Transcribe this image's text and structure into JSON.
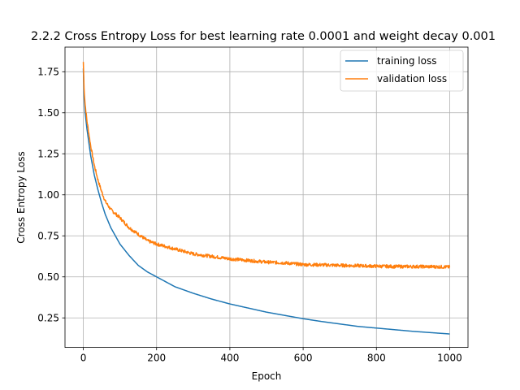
{
  "chart_data": {
    "type": "line",
    "title": "2.2.2 Cross Entropy Loss for best learning rate 0.0001 and weight decay 0.001",
    "xlabel": "Epoch",
    "ylabel": "Cross Entropy Loss",
    "xlim": [
      -50,
      1050
    ],
    "ylim": [
      0.07,
      1.9
    ],
    "xticks": [
      0,
      200,
      400,
      600,
      800,
      1000
    ],
    "xtick_labels": [
      "0",
      "200",
      "400",
      "600",
      "800",
      "1000"
    ],
    "yticks": [
      0.25,
      0.5,
      0.75,
      1.0,
      1.25,
      1.5,
      1.75
    ],
    "ytick_labels": [
      "0.25",
      "0.50",
      "0.75",
      "1.00",
      "1.25",
      "1.50",
      "1.75"
    ],
    "grid": true,
    "legend_position": "top-right",
    "series": [
      {
        "name": "training loss",
        "color": "#1f77b4",
        "x": [
          0,
          2,
          5,
          10,
          20,
          30,
          40,
          50,
          60,
          75,
          100,
          125,
          150,
          175,
          200,
          250,
          300,
          350,
          400,
          450,
          500,
          550,
          600,
          650,
          700,
          750,
          800,
          850,
          900,
          950,
          1000
        ],
        "y": [
          1.77,
          1.6,
          1.5,
          1.4,
          1.24,
          1.12,
          1.03,
          0.95,
          0.88,
          0.8,
          0.7,
          0.63,
          0.57,
          0.53,
          0.5,
          0.44,
          0.4,
          0.365,
          0.335,
          0.31,
          0.285,
          0.265,
          0.245,
          0.228,
          0.213,
          0.198,
          0.188,
          0.178,
          0.168,
          0.16,
          0.152
        ]
      },
      {
        "name": "validation loss",
        "color": "#ff7f0e",
        "noise": 0.01,
        "x": [
          0,
          2,
          5,
          10,
          20,
          30,
          40,
          50,
          60,
          75,
          100,
          125,
          150,
          175,
          200,
          250,
          300,
          350,
          400,
          450,
          500,
          550,
          600,
          650,
          700,
          750,
          800,
          850,
          900,
          950,
          1000
        ],
        "y": [
          1.81,
          1.65,
          1.55,
          1.45,
          1.3,
          1.18,
          1.09,
          1.02,
          0.96,
          0.91,
          0.86,
          0.8,
          0.76,
          0.72,
          0.7,
          0.67,
          0.64,
          0.625,
          0.61,
          0.6,
          0.59,
          0.585,
          0.575,
          0.573,
          0.57,
          0.568,
          0.565,
          0.563,
          0.563,
          0.562,
          0.56
        ]
      }
    ]
  }
}
